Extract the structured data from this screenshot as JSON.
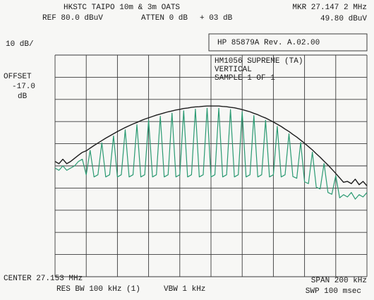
{
  "chart_data": {
    "type": "line",
    "title": "HKSTC TAIPO 10m & 3m OATS",
    "annotations": {
      "ref": "REF 80.0 dBuV",
      "atten": "ATTEN 0 dB",
      "ext": "+ 03 dB",
      "marker_freq": "MKR 27.147 2 MHz",
      "marker_level": "49.80 dBuV",
      "scale": "10 dB/",
      "offset": [
        "OFFSET",
        "-17.0",
        "dB"
      ],
      "instrument": "HP 85879A Rev. A.02.00",
      "info": [
        "HM1056 SUPREME (TA)",
        "VERTICAL",
        "SAMPLE 1 OF 1"
      ],
      "center": "CENTER 27.153 MHz",
      "span": "SPAN 200 kHz",
      "res_bw": "RES BW 100 kHz (1)",
      "vbw": "VBW 1 kHz",
      "sweep": "SWP 100 msec"
    },
    "xlim": [
      27.053,
      27.253
    ],
    "ylim": [
      -20,
      80
    ],
    "xticks": [
      27.053,
      27.073,
      27.093,
      27.113,
      27.133,
      27.153,
      27.173,
      27.193,
      27.213,
      27.233,
      27.253
    ],
    "yticks": [
      -20,
      -10,
      0,
      10,
      20,
      30,
      40,
      50,
      60,
      70,
      80
    ],
    "grid": true,
    "x": [
      27.053,
      27.0555,
      27.058,
      27.0605,
      27.063,
      27.0655,
      27.068,
      27.0705,
      27.073,
      27.0755,
      27.078,
      27.0805,
      27.083,
      27.0855,
      27.088,
      27.0905,
      27.093,
      27.0955,
      27.098,
      27.1005,
      27.103,
      27.1055,
      27.108,
      27.1105,
      27.113,
      27.1155,
      27.118,
      27.1205,
      27.123,
      27.1255,
      27.128,
      27.1305,
      27.133,
      27.1355,
      27.138,
      27.1405,
      27.143,
      27.1455,
      27.148,
      27.1505,
      27.153,
      27.1555,
      27.158,
      27.1605,
      27.163,
      27.1655,
      27.168,
      27.1705,
      27.173,
      27.1755,
      27.178,
      27.1805,
      27.183,
      27.1855,
      27.188,
      27.1905,
      27.193,
      27.1955,
      27.198,
      27.2005,
      27.203,
      27.2055,
      27.208,
      27.2105,
      27.213,
      27.2155,
      27.218,
      27.2205,
      27.223,
      27.2255,
      27.228,
      27.2305,
      27.233,
      27.2355,
      27.238,
      27.2405,
      27.243,
      27.2455,
      27.248,
      27.2505,
      27.253
    ],
    "series": [
      {
        "color": "#1c1c1c",
        "values": [
          32,
          31,
          33,
          31,
          32,
          33.4,
          34.8,
          36.1,
          36.8,
          38.0,
          39.2,
          40.3,
          41.4,
          42.5,
          43.5,
          44.5,
          45.5,
          46.4,
          47.3,
          48.1,
          48.9,
          49.6,
          50.4,
          51.1,
          51.7,
          52.3,
          52.9,
          53.4,
          53.9,
          54.4,
          54.8,
          55.2,
          55.5,
          55.9,
          56.1,
          56.4,
          56.6,
          56.7,
          56.9,
          57.0,
          57.0,
          57.0,
          57.0,
          56.8,
          56.7,
          56.4,
          56.2,
          55.8,
          55.4,
          54.9,
          54.4,
          53.7,
          53.1,
          52.3,
          51.6,
          50.7,
          49.8,
          48.8,
          47.8,
          46.6,
          45.5,
          44.2,
          43.0,
          41.6,
          40.2,
          38.7,
          37.2,
          35.5,
          33.9,
          32.1,
          30.4,
          28.5,
          26.6,
          24.6,
          22.6,
          23,
          22,
          24,
          21.5,
          23,
          21
        ]
      },
      {
        "color": "#2a9a72",
        "values": [
          29,
          28,
          30,
          28,
          29,
          30,
          32,
          33,
          26,
          37.0,
          25,
          26,
          40.4,
          25,
          26,
          43.5,
          25,
          26,
          46.3,
          25,
          26,
          48.6,
          25,
          26,
          50.7,
          25,
          26,
          52.4,
          25,
          26,
          53.8,
          25,
          26,
          54.9,
          25,
          26,
          55.6,
          25,
          26,
          56.0,
          25,
          26,
          56.0,
          25,
          26,
          55.4,
          25,
          26,
          54.4,
          25,
          26,
          52.7,
          25,
          26,
          50.6,
          25,
          26,
          47.8,
          25,
          26,
          44.5,
          25.2,
          24.4,
          40.6,
          22.8,
          22.0,
          36.2,
          20.4,
          19.6,
          31.1,
          18.0,
          17.2,
          25.6,
          15.6,
          17,
          16,
          18,
          15,
          17,
          16,
          18
        ]
      }
    ]
  }
}
